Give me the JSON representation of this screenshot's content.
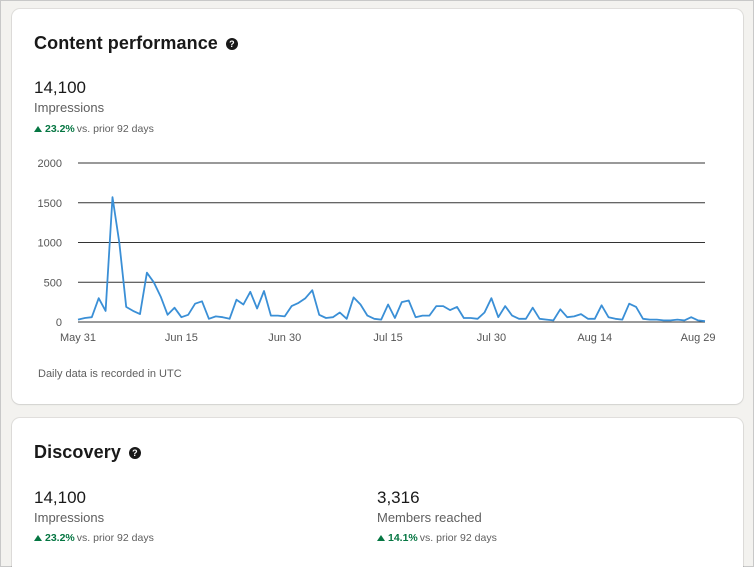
{
  "content_performance": {
    "title": "Content performance",
    "value": "14,100",
    "label": "Impressions",
    "change_pct": "23.2%",
    "change_suffix": "vs. prior 92 days",
    "footnote": "Daily data is recorded in UTC",
    "icons": {
      "help": "help-circle-icon",
      "trend": "up-arrow-icon"
    }
  },
  "discovery": {
    "title": "Discovery",
    "metrics": [
      {
        "value": "14,100",
        "label": "Impressions",
        "change_pct": "23.2%",
        "change_suffix": "vs. prior 92 days"
      },
      {
        "value": "3,316",
        "label": "Members reached",
        "change_pct": "14.1%",
        "change_suffix": "vs. prior 92 days"
      }
    ]
  },
  "colors": {
    "line": "#3a8fd6",
    "positive": "#057642",
    "grid": "#333333"
  },
  "chart_data": {
    "type": "line",
    "title": "",
    "xlabel": "",
    "ylabel": "",
    "ylim": [
      0,
      2000
    ],
    "yticks": [
      "0",
      "500",
      "1000",
      "1500",
      "2000"
    ],
    "xticks": [
      "May 31",
      "Jun 15",
      "Jun 30",
      "Jul 15",
      "Jul 30",
      "Aug 14",
      "Aug 29"
    ],
    "grid": true,
    "series": [
      {
        "values": [
          30,
          50,
          60,
          300,
          140,
          1570,
          1000,
          190,
          140,
          100,
          620,
          500,
          320,
          90,
          180,
          60,
          90,
          230,
          260,
          40,
          70,
          60,
          40,
          280,
          220,
          380,
          170,
          390,
          80,
          80,
          70,
          200,
          240,
          300,
          400,
          90,
          50,
          60,
          120,
          40,
          310,
          220,
          80,
          40,
          30,
          220,
          50,
          250,
          270,
          60,
          80,
          80,
          200,
          200,
          150,
          190,
          50,
          50,
          40,
          120,
          300,
          60,
          200,
          80,
          40,
          40,
          180,
          40,
          30,
          20,
          160,
          60,
          70,
          100,
          40,
          40,
          210,
          60,
          40,
          30,
          230,
          190,
          40,
          30,
          30,
          20,
          20,
          30,
          20,
          60,
          20,
          10
        ]
      }
    ]
  }
}
